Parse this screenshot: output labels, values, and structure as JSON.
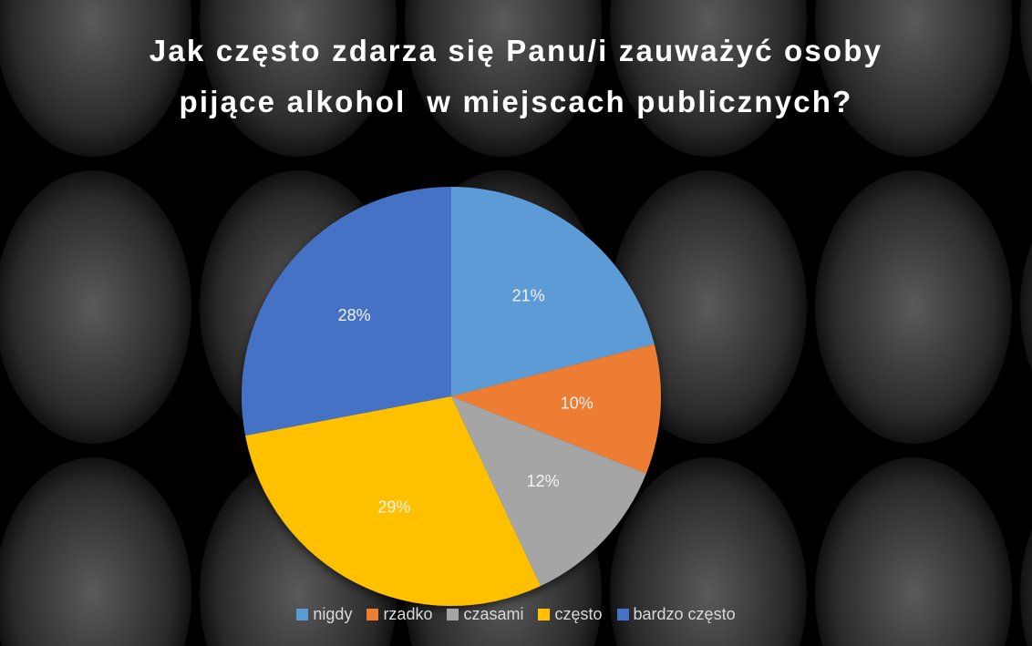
{
  "chart_data": {
    "type": "pie",
    "title": "Jak często zdarza się Panu/i zauważyć osoby pijące alkohol  w miejscach publicznych?",
    "categories": [
      "nigdy",
      "rzadko",
      "czasami",
      "często",
      "bardzo często"
    ],
    "values": [
      21,
      10,
      12,
      29,
      28
    ],
    "value_labels": [
      "21%",
      "10%",
      "12%",
      "29%",
      "28%"
    ],
    "colors": [
      "#5b9bd5",
      "#ed7d31",
      "#a5a5a5",
      "#ffc000",
      "#4472c4"
    ],
    "legend": "bottom"
  }
}
